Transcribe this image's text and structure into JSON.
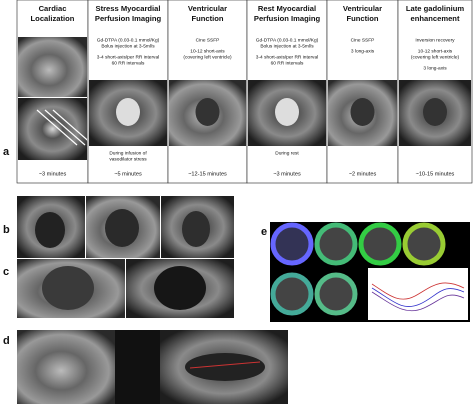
{
  "panel_a": {
    "label": "a",
    "columns": [
      {
        "title": [
          "Cardiac",
          "Localization"
        ],
        "description": [],
        "note": [],
        "time": "~3 minutes"
      },
      {
        "title": [
          "Stress Myocardial",
          "Perfusion Imaging"
        ],
        "description": [
          [
            "Gd-DTPA (0.03-0.1 mmol/Kg)",
            "Bolus injection at 3-5ml/s"
          ],
          [
            "3-4 short-axis/per RR interval",
            "60 RR intervals"
          ]
        ],
        "note": [
          "During infusion of",
          "vasodilator stress"
        ],
        "time": "~5 minutes"
      },
      {
        "title": [
          "Ventricular",
          "Function"
        ],
        "description": [
          [
            "Cine SSFP"
          ],
          [
            "10-12 short-axis",
            "(covering left ventricle)"
          ]
        ],
        "note": [],
        "time": "~12-15 minutes"
      },
      {
        "title": [
          "Rest Myocardial",
          "Perfusion Imaging"
        ],
        "description": [
          [
            "Gd-DTPA (0.03-0.1 mmol/Kg)",
            "Bolus injection at 3-5ml/s"
          ],
          [
            "3-4 short-axis/per RR interval",
            "60 RR intervals"
          ]
        ],
        "note": [
          "During rest"
        ],
        "time": "~3 minutes"
      },
      {
        "title": [
          "Ventricular",
          "Function"
        ],
        "description": [
          [
            "Cine SSFP"
          ],
          [
            "3 long-axis"
          ]
        ],
        "note": [],
        "time": "~2 minutes"
      },
      {
        "title": [
          "Late gadolinium",
          "enhancement"
        ],
        "description": [
          [
            "Inversion recovery"
          ],
          [
            "10-12 short-axis",
            "(covering left ventricle)"
          ],
          [
            "3 long-axis"
          ]
        ],
        "note": [],
        "time": "~10-15 minutes"
      }
    ]
  },
  "panel_b": {
    "label": "b"
  },
  "panel_c": {
    "label": "c"
  },
  "panel_d": {
    "label": "d"
  },
  "panel_e": {
    "label": "e"
  }
}
